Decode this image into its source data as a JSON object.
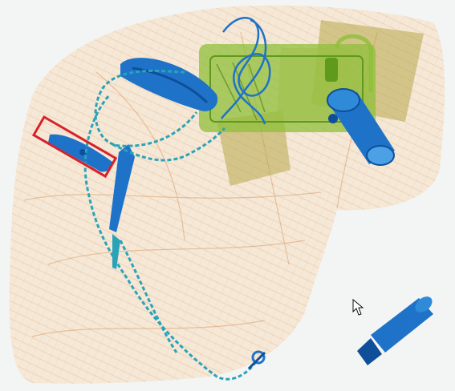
{
  "image": {
    "kind": "x-ray baggage scan",
    "background_color": "#f3f5f4",
    "colors": {
      "organic": "#e6a56d",
      "organic_dark": "#d2844a",
      "mixed": "#8fbf3a",
      "mixed_dark": "#5f9a1c",
      "olive": "#b7a84a",
      "metal": "#1e73c9",
      "metal_dark": "#0f4f9a",
      "chain": "#2aa3b8",
      "detection_box": "#d8212a"
    }
  },
  "bag": {
    "name": "soft-bag",
    "material": "organic"
  },
  "items": [
    {
      "name": "chain",
      "material": "metal"
    },
    {
      "name": "phone-device",
      "material": "mixed"
    },
    {
      "name": "padlock",
      "material": "metal"
    },
    {
      "name": "tube-object",
      "material": "metal"
    },
    {
      "name": "small-knife",
      "material": "metal"
    },
    {
      "name": "folded-pad",
      "material": "metal"
    },
    {
      "name": "vertical-tool",
      "material": "metal"
    },
    {
      "name": "keychain-clip",
      "material": "metal"
    },
    {
      "name": "rectangular-boards",
      "material": "olive"
    },
    {
      "name": "cylinder-object",
      "material": "metal"
    }
  ],
  "detection": {
    "label_visible": false,
    "color": "#d8212a"
  },
  "cursor": {
    "icon": "arrow-cursor-icon"
  }
}
